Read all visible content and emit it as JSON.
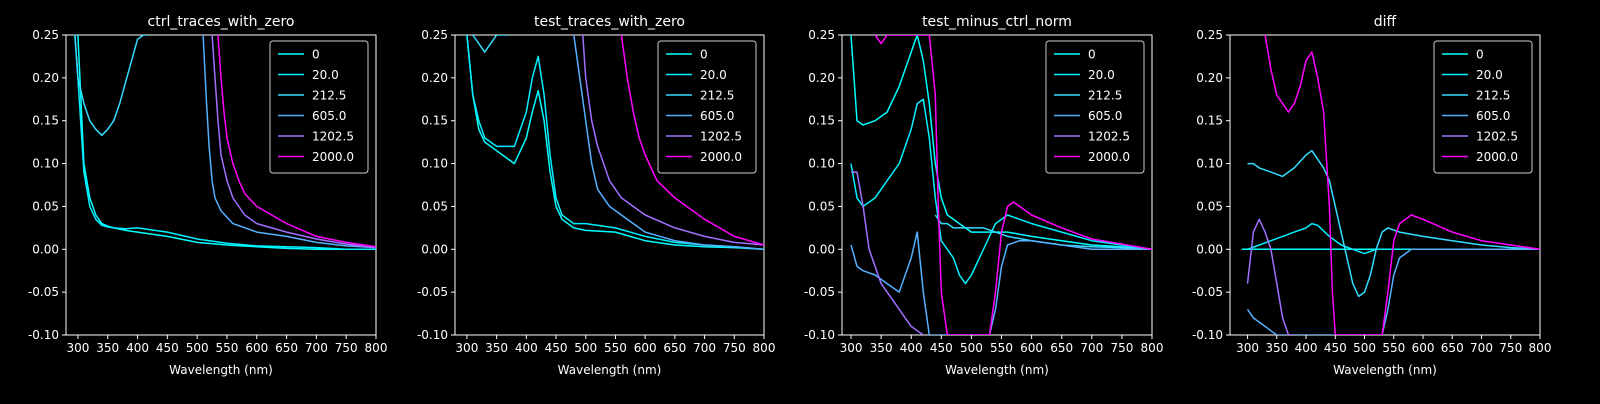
{
  "figure": {
    "background": "#000000",
    "text_color": "#ffffff"
  },
  "legend_labels": [
    "0",
    "20.0",
    "212.5",
    "605.0",
    "1202.5",
    "2000.0"
  ],
  "legend_colors": [
    "#00ffff",
    "#00f0ff",
    "#33ddff",
    "#55b0ff",
    "#a070ff",
    "#ff00ff"
  ],
  "chart_data": [
    {
      "type": "line",
      "title": "ctrl_traces_with_zero",
      "xlabel": "Wavelength (nm)",
      "ylabel": "",
      "xlim": [
        280,
        800
      ],
      "ylim": [
        -0.1,
        0.25
      ],
      "xticks": [
        300,
        350,
        400,
        450,
        500,
        550,
        600,
        650,
        700,
        750,
        800
      ],
      "yticks": [
        -0.1,
        -0.05,
        0.0,
        0.05,
        0.1,
        0.15,
        0.2,
        0.25
      ],
      "legend_position": "top-right",
      "grid": false,
      "series": [
        {
          "name": "0",
          "x": [
            300,
            310,
            320,
            330,
            340,
            350,
            360,
            380,
            400,
            450,
            500,
            550,
            600,
            650,
            700,
            750,
            800
          ],
          "y": [
            0.25,
            0.1,
            0.06,
            0.04,
            0.03,
            0.027,
            0.025,
            0.022,
            0.02,
            0.015,
            0.008,
            0.005,
            0.003,
            0.001,
            0.0,
            0.0,
            0.0
          ]
        },
        {
          "name": "20.0",
          "x": [
            295,
            300,
            310,
            320,
            330,
            340,
            350,
            360,
            380,
            400,
            450,
            500,
            550,
            600,
            650,
            700,
            750,
            800
          ],
          "y": [
            0.25,
            0.2,
            0.09,
            0.05,
            0.035,
            0.028,
            0.026,
            0.025,
            0.024,
            0.025,
            0.02,
            0.012,
            0.007,
            0.004,
            0.003,
            0.002,
            0.0,
            0.0
          ]
        },
        {
          "name": "212.5",
          "x": [
            295,
            300,
            310,
            320,
            330,
            340,
            350,
            360,
            370,
            380,
            390,
            400,
            410,
            420
          ],
          "y": [
            0.25,
            0.2,
            0.17,
            0.15,
            0.14,
            0.133,
            0.14,
            0.15,
            0.17,
            0.195,
            0.22,
            0.245,
            0.25,
            0.25
          ]
        },
        {
          "name": "605.0",
          "x": [
            510,
            515,
            520,
            525,
            530,
            540,
            560,
            600,
            650,
            700,
            750,
            800
          ],
          "y": [
            0.25,
            0.18,
            0.12,
            0.08,
            0.06,
            0.045,
            0.03,
            0.02,
            0.015,
            0.008,
            0.004,
            0.002
          ]
        },
        {
          "name": "1202.5",
          "x": [
            525,
            530,
            535,
            540,
            550,
            560,
            580,
            600,
            650,
            700,
            750,
            800
          ],
          "y": [
            0.25,
            0.2,
            0.15,
            0.11,
            0.08,
            0.06,
            0.04,
            0.03,
            0.02,
            0.012,
            0.006,
            0.002
          ]
        },
        {
          "name": "2000.0",
          "x": [
            535,
            540,
            545,
            550,
            560,
            570,
            580,
            600,
            650,
            700,
            750,
            800
          ],
          "y": [
            0.25,
            0.2,
            0.16,
            0.13,
            0.1,
            0.08,
            0.065,
            0.05,
            0.03,
            0.015,
            0.008,
            0.003
          ]
        }
      ]
    },
    {
      "type": "line",
      "title": "test_traces_with_zero",
      "xlabel": "Wavelength (nm)",
      "ylabel": "",
      "xlim": [
        280,
        800
      ],
      "ylim": [
        -0.1,
        0.25
      ],
      "xticks": [
        300,
        350,
        400,
        450,
        500,
        550,
        600,
        650,
        700,
        750,
        800
      ],
      "yticks": [
        -0.1,
        -0.05,
        0.0,
        0.05,
        0.1,
        0.15,
        0.2,
        0.25
      ],
      "legend_position": "top-right",
      "grid": false,
      "series": [
        {
          "name": "0",
          "x": [
            300,
            310,
            320,
            330,
            340,
            350,
            360,
            380,
            400,
            410,
            420,
            430,
            440,
            450,
            460,
            480,
            500,
            550,
            600,
            650,
            700,
            750,
            800
          ],
          "y": [
            0.25,
            0.18,
            0.14,
            0.125,
            0.12,
            0.115,
            0.11,
            0.1,
            0.13,
            0.16,
            0.185,
            0.15,
            0.09,
            0.05,
            0.035,
            0.025,
            0.022,
            0.02,
            0.01,
            0.005,
            0.003,
            0.002,
            0.0
          ]
        },
        {
          "name": "20.0",
          "x": [
            300,
            310,
            320,
            330,
            340,
            350,
            360,
            380,
            400,
            410,
            420,
            430,
            440,
            450,
            460,
            480,
            500,
            550,
            600,
            650,
            700,
            750,
            800
          ],
          "y": [
            0.25,
            0.18,
            0.15,
            0.13,
            0.125,
            0.12,
            0.12,
            0.12,
            0.16,
            0.2,
            0.225,
            0.18,
            0.11,
            0.06,
            0.04,
            0.03,
            0.03,
            0.025,
            0.015,
            0.008,
            0.005,
            0.003,
            0.0
          ]
        },
        {
          "name": "212.5",
          "x": [
            310,
            320,
            330,
            340,
            350,
            360,
            370
          ],
          "y": [
            0.25,
            0.24,
            0.23,
            0.24,
            0.25,
            0.25,
            0.25
          ]
        },
        {
          "name": "605.0",
          "x": [
            480,
            490,
            500,
            510,
            520,
            540,
            560,
            580,
            600,
            650,
            700,
            750,
            800
          ],
          "y": [
            0.25,
            0.2,
            0.15,
            0.1,
            0.07,
            0.05,
            0.04,
            0.03,
            0.02,
            0.01,
            0.005,
            0.003,
            0.0
          ]
        },
        {
          "name": "1202.5",
          "x": [
            495,
            500,
            510,
            520,
            530,
            540,
            560,
            600,
            650,
            700,
            750,
            800
          ],
          "y": [
            0.25,
            0.2,
            0.15,
            0.12,
            0.1,
            0.08,
            0.06,
            0.04,
            0.025,
            0.015,
            0.008,
            0.005
          ]
        },
        {
          "name": "2000.0",
          "x": [
            560,
            570,
            580,
            590,
            600,
            620,
            650,
            700,
            750,
            800
          ],
          "y": [
            0.25,
            0.2,
            0.16,
            0.13,
            0.11,
            0.08,
            0.06,
            0.035,
            0.015,
            0.005
          ]
        }
      ]
    },
    {
      "type": "line",
      "title": "test_minus_ctrl_norm",
      "xlabel": "Wavelength (nm)",
      "ylabel": "",
      "xlim": [
        285,
        800
      ],
      "ylim": [
        -0.1,
        0.25
      ],
      "xticks": [
        300,
        350,
        400,
        450,
        500,
        550,
        600,
        650,
        700,
        750,
        800
      ],
      "yticks": [
        -0.1,
        -0.05,
        0.0,
        0.05,
        0.1,
        0.15,
        0.2,
        0.25
      ],
      "legend_position": "top-right",
      "grid": false,
      "series": [
        {
          "name": "0",
          "x": [
            300,
            310,
            320,
            340,
            360,
            380,
            400,
            410,
            420,
            430,
            440,
            450,
            460,
            470,
            480,
            490,
            500,
            520,
            540,
            560,
            600,
            650,
            700,
            750,
            800
          ],
          "y": [
            0.25,
            0.15,
            0.145,
            0.15,
            0.16,
            0.19,
            0.23,
            0.25,
            0.22,
            0.17,
            0.1,
            0.06,
            0.04,
            0.035,
            0.03,
            0.025,
            0.02,
            0.02,
            0.02,
            0.02,
            0.015,
            0.01,
            0.005,
            0.003,
            0.0
          ]
        },
        {
          "name": "20.0",
          "x": [
            300,
            310,
            320,
            340,
            360,
            380,
            400,
            410,
            420,
            430,
            440,
            450,
            460,
            470,
            480,
            490,
            500,
            520,
            540,
            560,
            600,
            650,
            700,
            750,
            800
          ],
          "y": [
            0.1,
            0.06,
            0.05,
            0.06,
            0.08,
            0.1,
            0.14,
            0.17,
            0.175,
            0.13,
            0.06,
            0.01,
            0.0,
            -0.01,
            -0.03,
            -0.04,
            -0.03,
            0.0,
            0.03,
            0.04,
            0.03,
            0.02,
            0.01,
            0.005,
            0.0
          ]
        },
        {
          "name": "212.5",
          "x": [
            440,
            450,
            460,
            470,
            480,
            500,
            520,
            540,
            560,
            600,
            650,
            700,
            750,
            800
          ],
          "y": [
            0.04,
            0.03,
            0.03,
            0.025,
            0.025,
            0.025,
            0.025,
            0.02,
            0.015,
            0.01,
            0.005,
            0.003,
            0.002,
            0.0
          ]
        },
        {
          "name": "605.0",
          "x": [
            300,
            310,
            320,
            340,
            360,
            380,
            400,
            410,
            420,
            430,
            530,
            540,
            550,
            560,
            580,
            600,
            650,
            700,
            750,
            800
          ],
          "y": [
            0.005,
            -0.02,
            -0.025,
            -0.03,
            -0.04,
            -0.05,
            -0.01,
            0.02,
            -0.05,
            -0.1,
            -0.1,
            -0.07,
            -0.02,
            0.005,
            0.01,
            0.01,
            0.005,
            0.0,
            0.0,
            0.0
          ]
        },
        {
          "name": "1202.5",
          "x": [
            300,
            310,
            320,
            330,
            340,
            350,
            360,
            370,
            380,
            390,
            400,
            410,
            420
          ],
          "y": [
            0.09,
            0.09,
            0.05,
            0.0,
            -0.02,
            -0.04,
            -0.05,
            -0.06,
            -0.07,
            -0.08,
            -0.09,
            -0.095,
            -0.1
          ]
        },
        {
          "name": "2000.0",
          "x": [
            340,
            350,
            360,
            400,
            430,
            440,
            445,
            450,
            460,
            530,
            540,
            550,
            560,
            570,
            580,
            600,
            650,
            700,
            750,
            800
          ],
          "y": [
            0.25,
            0.24,
            0.25,
            0.25,
            0.25,
            0.18,
            0.05,
            -0.05,
            -0.1,
            -0.1,
            -0.05,
            0.02,
            0.05,
            0.055,
            0.05,
            0.04,
            0.025,
            0.012,
            0.006,
            0.0
          ]
        }
      ]
    },
    {
      "type": "line",
      "title": "diff",
      "xlabel": "Wavelength (nm)",
      "ylabel": "",
      "xlim": [
        270,
        800
      ],
      "ylim": [
        -0.1,
        0.25
      ],
      "xticks": [
        300,
        350,
        400,
        450,
        500,
        550,
        600,
        650,
        700,
        750,
        800
      ],
      "yticks": [
        -0.1,
        -0.05,
        0.0,
        0.05,
        0.1,
        0.15,
        0.2,
        0.25
      ],
      "legend_position": "top-right",
      "grid": false,
      "series": [
        {
          "name": "0",
          "x": [
            290,
            800
          ],
          "y": [
            0.0,
            0.0
          ]
        },
        {
          "name": "20.0",
          "x": [
            300,
            320,
            340,
            360,
            380,
            400,
            410,
            420,
            440,
            460,
            480,
            500,
            520,
            540,
            560,
            600,
            650,
            700,
            750,
            800
          ],
          "y": [
            0.0,
            0.005,
            0.01,
            0.015,
            0.02,
            0.025,
            0.03,
            0.028,
            0.015,
            0.005,
            0.0,
            -0.005,
            0.0,
            0.0,
            0.0,
            0.0,
            0.0,
            0.0,
            0.0,
            0.0
          ]
        },
        {
          "name": "212.5",
          "x": [
            300,
            310,
            320,
            340,
            360,
            380,
            400,
            410,
            420,
            430,
            440,
            450,
            460,
            470,
            480,
            490,
            500,
            510,
            520,
            530,
            540,
            560,
            600,
            650,
            700,
            750,
            800
          ],
          "y": [
            0.1,
            0.1,
            0.095,
            0.09,
            0.085,
            0.095,
            0.11,
            0.115,
            0.105,
            0.095,
            0.08,
            0.05,
            0.02,
            -0.01,
            -0.04,
            -0.055,
            -0.05,
            -0.03,
            0.0,
            0.02,
            0.025,
            0.02,
            0.015,
            0.01,
            0.005,
            0.002,
            0.0
          ]
        },
        {
          "name": "605.0",
          "x": [
            300,
            310,
            320,
            330,
            340,
            350,
            360,
            370,
            380,
            390,
            400,
            530,
            540,
            550,
            560,
            580,
            600,
            650,
            700,
            750,
            800
          ],
          "y": [
            -0.07,
            -0.08,
            -0.085,
            -0.09,
            -0.095,
            -0.1,
            -0.1,
            -0.1,
            -0.1,
            -0.1,
            -0.1,
            -0.1,
            -0.07,
            -0.03,
            -0.01,
            0.0,
            0.0,
            0.0,
            0.0,
            0.0,
            0.0
          ]
        },
        {
          "name": "1202.5",
          "x": [
            300,
            310,
            320,
            330,
            340,
            350,
            360,
            370,
            380
          ],
          "y": [
            -0.04,
            0.02,
            0.035,
            0.02,
            0.0,
            -0.04,
            -0.08,
            -0.1,
            -0.1
          ]
        },
        {
          "name": "2000.0",
          "x": [
            330,
            340,
            350,
            360,
            370,
            380,
            390,
            400,
            410,
            420,
            430,
            440,
            445,
            450,
            530,
            540,
            550,
            560,
            570,
            580,
            600,
            650,
            700,
            750,
            800
          ],
          "y": [
            0.25,
            0.21,
            0.18,
            0.17,
            0.16,
            0.17,
            0.19,
            0.22,
            0.23,
            0.2,
            0.16,
            0.05,
            -0.05,
            -0.1,
            -0.1,
            -0.05,
            0.01,
            0.03,
            0.035,
            0.04,
            0.035,
            0.02,
            0.01,
            0.005,
            0.0
          ]
        }
      ]
    }
  ]
}
